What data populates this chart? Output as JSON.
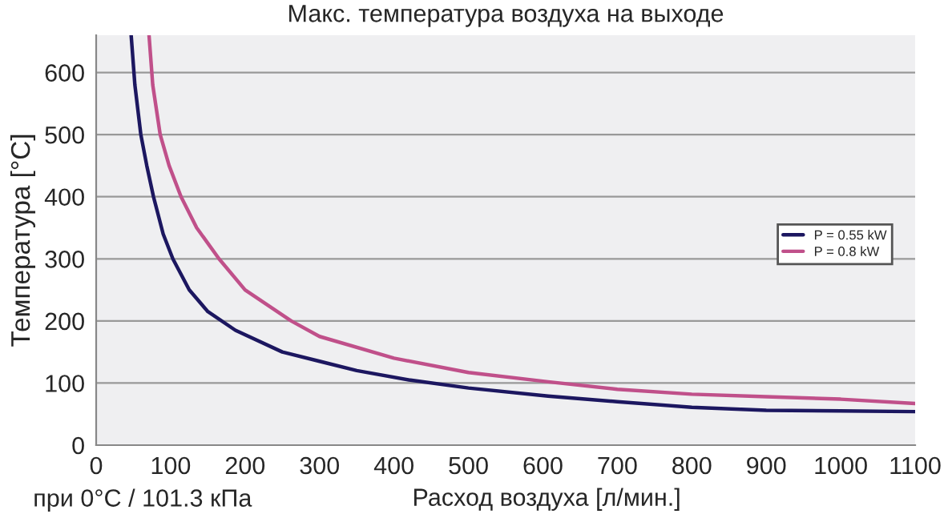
{
  "chart_data": {
    "type": "line",
    "title": "Макс. температура воздуха на выходе",
    "xlabel": "Расход воздуха [л/мин.]",
    "ylabel": "Температура [°C]",
    "annotations": [
      "при 0°C / 101.3 кПа"
    ],
    "series": [
      {
        "name": "P = 0.55 kW",
        "color": "#1c1760",
        "x": [
          47,
          52,
          60,
          68,
          77,
          90,
          103,
          125,
          150,
          187,
          250,
          300,
          350,
          420,
          500,
          607,
          700,
          800,
          900,
          1000,
          1100
        ],
        "values": [
          660,
          580,
          500,
          450,
          400,
          340,
          300,
          250,
          215,
          185,
          150,
          135,
          120,
          105,
          92,
          79,
          70,
          61,
          56,
          55,
          54
        ]
      },
      {
        "name": "P = 0.8 kW",
        "color": "#c0508a",
        "x": [
          71,
          76,
          86,
          98,
          114,
          135,
          165,
          200,
          262,
          300,
          400,
          500,
          607,
          700,
          800,
          900,
          1000,
          1100
        ],
        "values": [
          660,
          580,
          500,
          450,
          400,
          350,
          300,
          250,
          200,
          175,
          140,
          117,
          102,
          90,
          82,
          78,
          74,
          67
        ]
      }
    ],
    "xlim": [
      0,
      1100
    ],
    "ylim": [
      0,
      660
    ],
    "xticks": [
      0,
      100,
      200,
      300,
      400,
      500,
      600,
      700,
      800,
      900,
      1000,
      1100
    ],
    "yticks": [
      0,
      100,
      200,
      300,
      400,
      500,
      600
    ],
    "grid": "y",
    "legend": "center right",
    "line_style": "solid",
    "marker": "none"
  }
}
